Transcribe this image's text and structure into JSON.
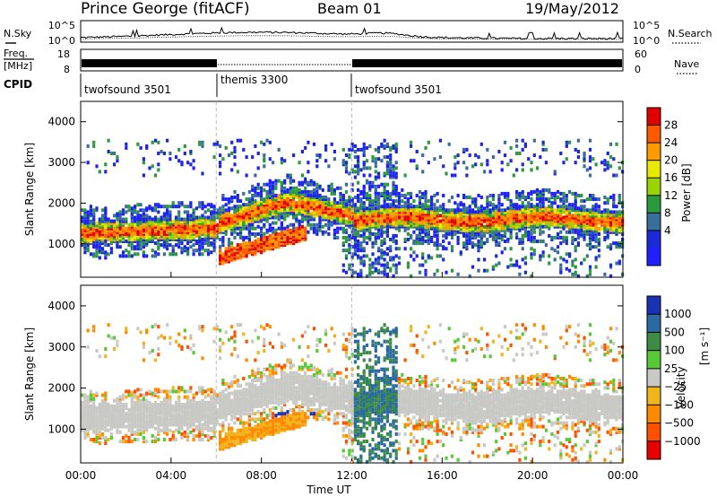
{
  "header": {
    "station": "Prince George (fitACF)",
    "beam": "Beam 01",
    "date": "19/May/2012"
  },
  "strips": {
    "nsky": {
      "label": "N.Sky",
      "ticks": [
        "10^5",
        "10^0"
      ]
    },
    "nsearch": {
      "label": "N.Search",
      "ticks": [
        "10^5",
        "10^0"
      ]
    },
    "freq": {
      "label_line1": "Freq.",
      "label_line2": "[MHz]",
      "ticks": [
        "18",
        "8"
      ]
    },
    "nave": {
      "label": "Nave",
      "ticks": [
        "60",
        "0"
      ]
    },
    "cpid": {
      "label": "CPID",
      "segments": [
        {
          "name": "twofsound 3501",
          "start_hour": 0,
          "end_hour": 6
        },
        {
          "name": "themis 3300",
          "start_hour": 6,
          "end_hour": 12
        },
        {
          "name": "twofsound 3501",
          "start_hour": 12,
          "end_hour": 24
        }
      ]
    }
  },
  "chart_data": [
    {
      "type": "heatmap",
      "name": "power-panel",
      "ylabel": "Slant Range [km]",
      "yticks": [
        "4000",
        "3000",
        "2000",
        "1000"
      ],
      "ylim": [
        180,
        4500
      ],
      "xlim": [
        0,
        24
      ],
      "colorbar": {
        "label": "Power [dB]",
        "ticks": [
          "28",
          "24",
          "20",
          "16",
          "12",
          "8",
          "4"
        ],
        "colors": [
          "#e00000",
          "#ff5a00",
          "#ff9a00",
          "#e8e800",
          "#9ad400",
          "#2a9a3a",
          "#3a6e9a",
          "#1a2ad8",
          "#2020ff"
        ]
      }
    },
    {
      "type": "heatmap",
      "name": "velocity-panel",
      "ylabel": "Slant Range [km]",
      "yticks": [
        "4000",
        "3000",
        "2000",
        "1000"
      ],
      "ylim": [
        180,
        4500
      ],
      "xlim": [
        0,
        24
      ],
      "xlabel": "Time UT",
      "xticks": [
        "00:00",
        "04:00",
        "08:00",
        "12:00",
        "16:00",
        "20:00",
        "00:00"
      ],
      "colorbar": {
        "label": "Velocity",
        "unit_label": "[m s⁻¹]",
        "ticks": [
          "1000",
          "500",
          "100",
          "25",
          "−25",
          "−100",
          "−500",
          "−1000"
        ],
        "colors": [
          "#1a32b4",
          "#2a6aa0",
          "#3c8c46",
          "#58c836",
          "#c8c8c4",
          "#f0b41e",
          "#ff8a00",
          "#ff5000",
          "#e60000"
        ]
      }
    }
  ]
}
